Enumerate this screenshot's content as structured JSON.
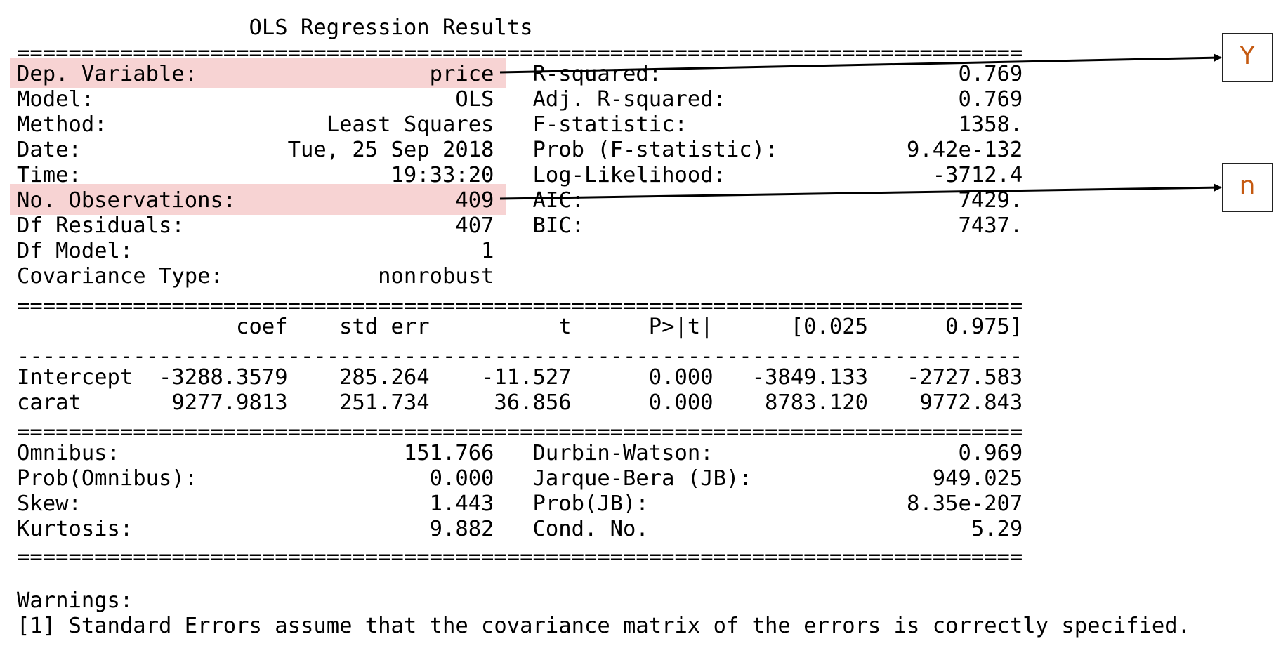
{
  "report": {
    "lines": [
      "                  OLS Regression Results",
      "==============================================================================",
      "Dep. Variable:                  price   R-squared:                       0.769",
      "Model:                            OLS   Adj. R-squared:                  0.769",
      "Method:                 Least Squares   F-statistic:                     1358.",
      "Date:                Tue, 25 Sep 2018   Prob (F-statistic):          9.42e-132",
      "Time:                        19:33:20   Log-Likelihood:                -3712.4",
      "No. Observations:                 409   AIC:                             7429.",
      "Df Residuals:                     407   BIC:                             7437.",
      "Df Model:                           1",
      "Covariance Type:            nonrobust",
      "==============================================================================",
      "                 coef    std err          t      P>|t|      [0.025      0.975]",
      "------------------------------------------------------------------------------",
      "Intercept  -3288.3579    285.264    -11.527      0.000   -3849.133   -2727.583",
      "carat       9277.9813    251.734     36.856      0.000    8783.120    9772.843",
      "==============================================================================",
      "Omnibus:                      151.766   Durbin-Watson:                   0.969",
      "Prob(Omnibus):                  0.000   Jarque-Bera (JB):              949.025",
      "Skew:                           1.443   Prob(JB):                    8.35e-207",
      "Kurtosis:                       9.882   Cond. No.                         5.29",
      "==============================================================================",
      "",
      "Warnings:",
      "[1] Standard Errors assume that the covariance matrix of the errors is correctly specified."
    ]
  },
  "callouts": {
    "y_label": "Y",
    "n_label": "n"
  },
  "colors": {
    "highlight": "#f7d3d3",
    "callout_text": "#c55a11",
    "arrow": "#000000"
  }
}
